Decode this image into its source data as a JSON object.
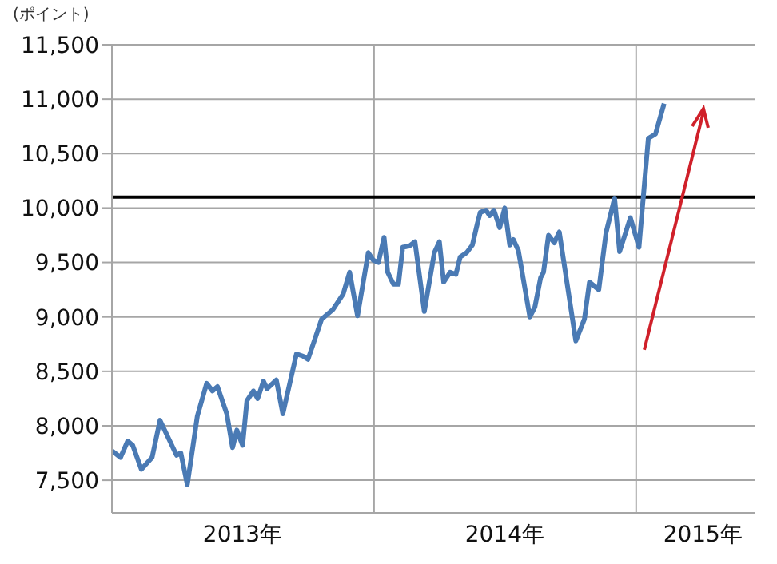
{
  "chart_data": {
    "type": "line",
    "ylabel": "(ポイント)",
    "x": [
      "2013-01-01",
      "2013-01-13",
      "2013-01-23",
      "2013-01-30",
      "2013-02-11",
      "2013-02-26",
      "2013-03-09",
      "2013-04-01",
      "2013-04-07",
      "2013-04-16",
      "2013-04-30",
      "2013-05-13",
      "2013-05-21",
      "2013-05-28",
      "2013-06-10",
      "2013-06-18",
      "2013-06-24",
      "2013-07-02",
      "2013-07-08",
      "2013-07-17",
      "2013-07-23",
      "2013-07-31",
      "2013-08-05",
      "2013-08-18",
      "2013-08-27",
      "2013-09-15",
      "2013-09-24",
      "2013-10-01",
      "2013-10-20",
      "2013-11-05",
      "2013-11-19",
      "2013-11-28",
      "2013-12-09",
      "2013-12-24",
      "2013-12-31",
      "2014-01-07",
      "2014-01-15",
      "2014-01-20",
      "2014-01-28",
      "2014-02-04",
      "2014-02-10",
      "2014-02-19",
      "2014-02-27",
      "2014-03-12",
      "2014-03-26",
      "2014-04-02",
      "2014-04-08",
      "2014-04-17",
      "2014-04-25",
      "2014-05-01",
      "2014-05-10",
      "2014-05-18",
      "2014-05-25",
      "2014-05-29",
      "2014-06-06",
      "2014-06-11",
      "2014-06-17",
      "2014-06-25",
      "2014-07-02",
      "2014-07-09",
      "2014-07-14",
      "2014-07-21",
      "2014-08-06",
      "2014-08-13",
      "2014-08-21",
      "2014-08-25",
      "2014-09-01",
      "2014-09-09",
      "2014-09-16",
      "2014-10-09",
      "2014-10-21",
      "2014-10-28",
      "2014-11-10",
      "2014-11-20",
      "2014-12-02",
      "2014-12-09",
      "2014-12-24",
      "2015-01-05",
      "2015-01-18",
      "2015-01-28",
      "2015-02-09"
    ],
    "series": [
      {
        "color": "#4a7ab4",
        "values": [
          7770,
          7710,
          7860,
          7820,
          7600,
          7710,
          8050,
          7730,
          7750,
          7460,
          8090,
          8390,
          8320,
          8360,
          8110,
          7800,
          7960,
          7820,
          8230,
          8320,
          8250,
          8410,
          8340,
          8420,
          8110,
          8660,
          8640,
          8610,
          8980,
          9070,
          9210,
          9410,
          9010,
          9590,
          9520,
          9500,
          9730,
          9410,
          9300,
          9300,
          9640,
          9650,
          9690,
          9050,
          9590,
          9690,
          9320,
          9410,
          9390,
          9550,
          9590,
          9660,
          9860,
          9960,
          9980,
          9930,
          9980,
          9820,
          10000,
          9660,
          9710,
          9610,
          9000,
          9090,
          9360,
          9410,
          9750,
          9680,
          9780,
          8780,
          8980,
          9320,
          9250,
          9770,
          10090,
          9600,
          9910,
          9640,
          10640,
          10680,
          10960
        ]
      }
    ],
    "xlim": [
      "2013-01-01",
      "2015-06-15"
    ],
    "xticks": [
      {
        "value": "2013-01-01",
        "label": null
      },
      {
        "value": "2013-07-02",
        "label": "2013年"
      },
      {
        "value": "2014-01-01",
        "label": null
      },
      {
        "value": "2014-07-02",
        "label": "2014年"
      },
      {
        "value": "2015-01-01",
        "label": null
      },
      {
        "value": "2015-04-04",
        "label": "2015年"
      }
    ],
    "ylim": [
      7200,
      11500
    ],
    "yticks": [
      {
        "value": 7500,
        "label": "7,500"
      },
      {
        "value": 8000,
        "label": "8,000"
      },
      {
        "value": 8500,
        "label": "8,500"
      },
      {
        "value": 9000,
        "label": "9,000"
      },
      {
        "value": 9500,
        "label": "9,500"
      },
      {
        "value": 10000,
        "label": "10,000"
      },
      {
        "value": 10500,
        "label": "10,500"
      },
      {
        "value": 11000,
        "label": "11,000"
      },
      {
        "value": 11500,
        "label": "11,500"
      }
    ],
    "grid": true,
    "marker": "none",
    "ref_lines": [
      {
        "axis": "y",
        "value": 10100,
        "color": "#000000"
      }
    ]
  }
}
